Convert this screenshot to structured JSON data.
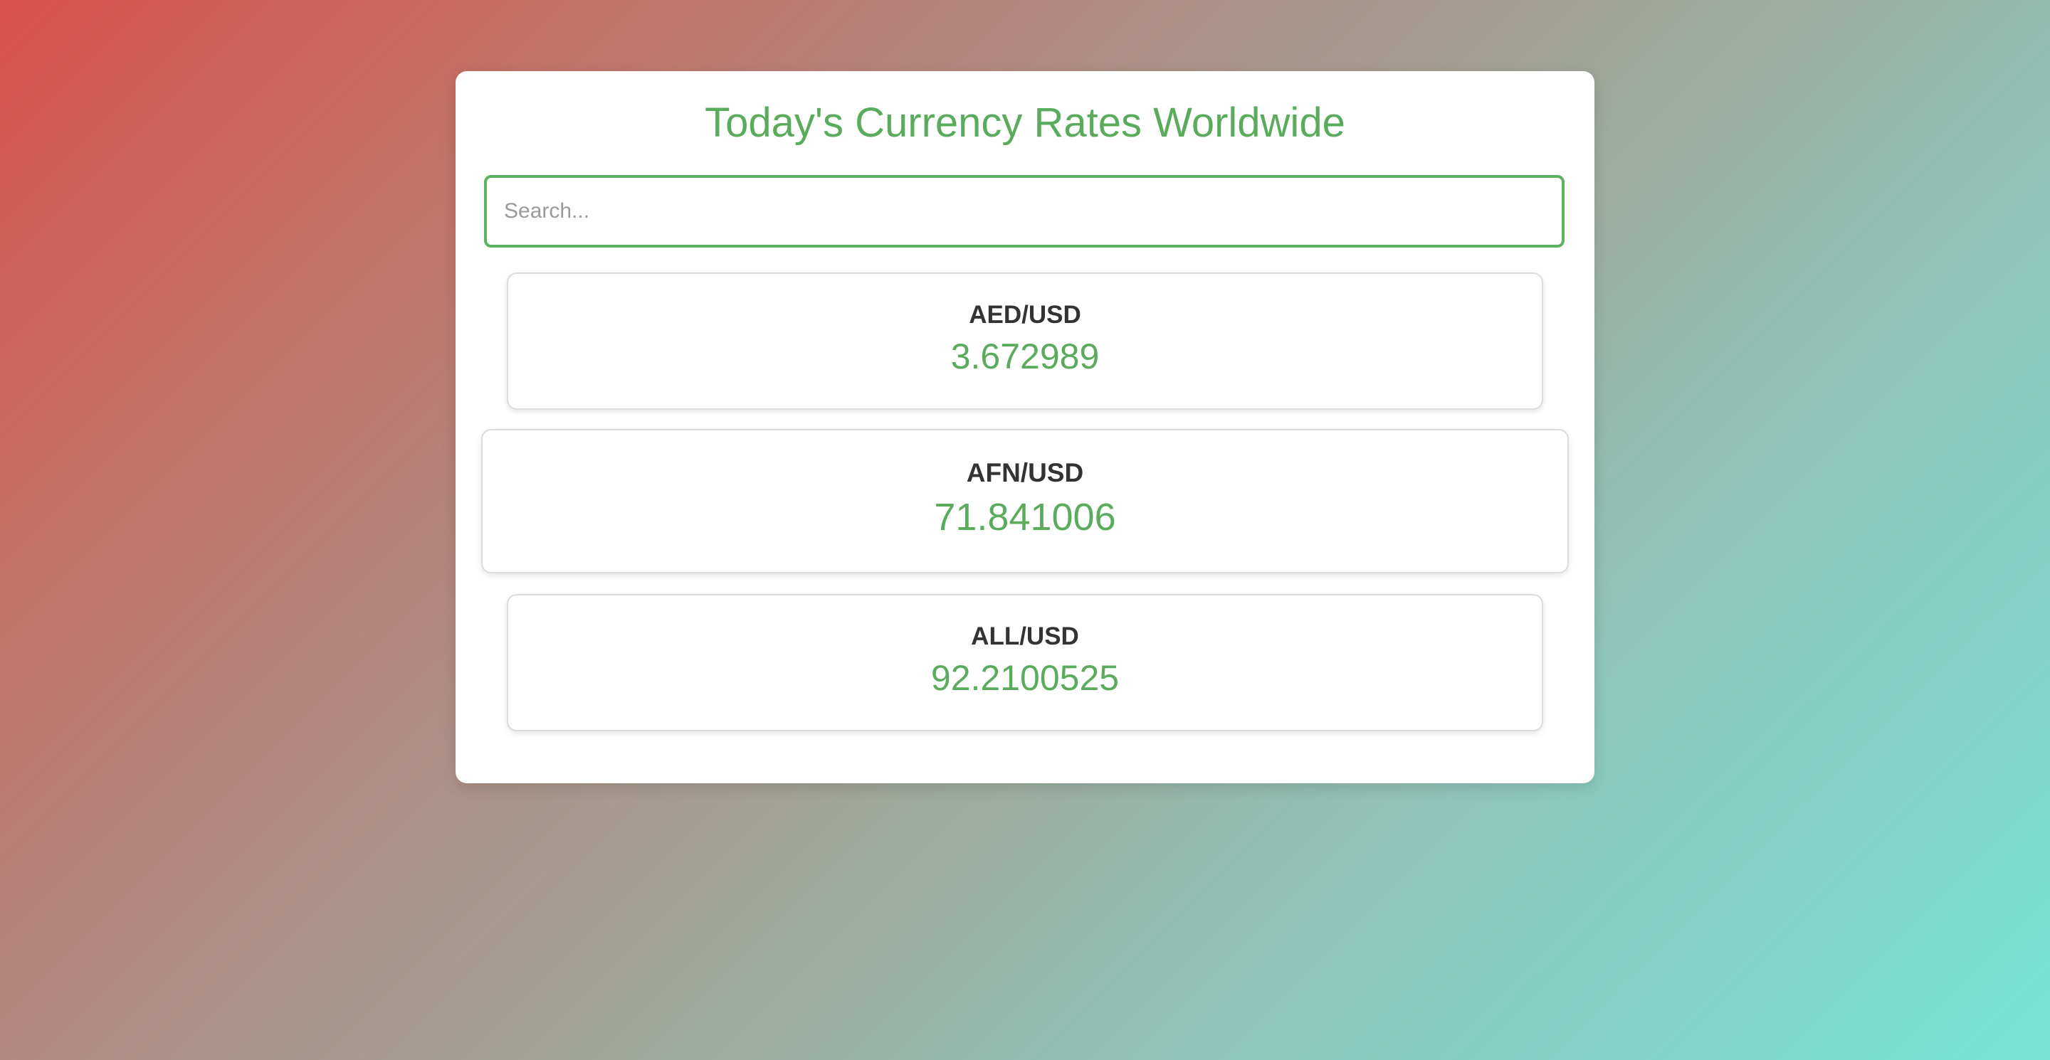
{
  "header": {
    "title": "Today's Currency Rates Worldwide"
  },
  "search": {
    "placeholder": "Search...",
    "value": ""
  },
  "rates": [
    {
      "pair": "AED/USD",
      "value": "3.672989"
    },
    {
      "pair": "AFN/USD",
      "value": "71.841006"
    },
    {
      "pair": "ALL/USD",
      "value": "92.2100525"
    }
  ],
  "colors": {
    "accent": "#5aac5c",
    "text": "#333333",
    "gradient_start": "#d9534a",
    "gradient_end": "#76e3d6"
  }
}
